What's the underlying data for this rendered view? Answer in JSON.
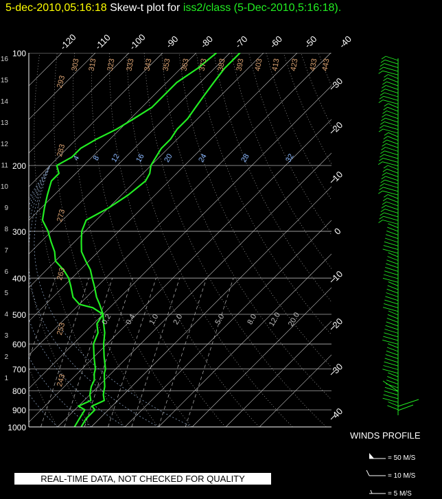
{
  "header": {
    "datetime": "5-dec-2010,05:16:18",
    "plot_label": "Skew-t plot for",
    "source": "iss2/class (5-Dec-2010,5:16:18)."
  },
  "footer": {
    "quality_note": "REAL-TIME DATA, NOT CHECKED FOR QUALITY"
  },
  "winds": {
    "title": "WINDS PROFILE",
    "legend": [
      {
        "label": "= 50 M/S"
      },
      {
        "label": "= 10 M/S"
      },
      {
        "label": "= 5 M/S"
      }
    ]
  },
  "colors": {
    "background": "#000000",
    "profile": "#22ee22",
    "grid": "#ffffff",
    "dry_adiabat_labels": "#d8a070",
    "mixing_ratio_labels": "#8ab8ff",
    "title_datetime": "#ffff00"
  },
  "chart_data": {
    "type": "line",
    "title": "Skew-t plot for iss2/class (5-Dec-2010,5:16:18).",
    "ylabel_left_km": [
      "16",
      "15",
      "14",
      "13",
      "12",
      "11",
      "10",
      "9",
      "8",
      "7",
      "6",
      "5",
      "4",
      "3",
      "2",
      "1"
    ],
    "pressure_levels": [
      100,
      200,
      300,
      400,
      500,
      600,
      700,
      800,
      900,
      1000
    ],
    "pressure_labels": [
      "100",
      "200",
      "300",
      "400",
      "500",
      "600",
      "700",
      "800",
      "900",
      "1000"
    ],
    "top_temperature_labels": [
      "-120",
      "-110",
      "-100",
      "-90",
      "-80",
      "-70",
      "-60",
      "-50",
      "-40"
    ],
    "right_temperature_labels": [
      "30",
      "20",
      "10",
      "0",
      "10",
      "20",
      "30",
      "40"
    ],
    "dry_adiabat_labels": [
      "303",
      "313",
      "323",
      "333",
      "343",
      "353",
      "363",
      "373",
      "383",
      "393",
      "403",
      "413",
      "423",
      "433",
      "443",
      "293",
      "283",
      "273",
      "263",
      "253",
      "243"
    ],
    "mixing_ratio_labels_200hPa": [
      "4",
      "8",
      "12",
      "16",
      "20",
      "24",
      "28",
      "32"
    ],
    "mixing_ratio_labels_500hPa": [
      "0.2",
      "0.4",
      "1.0",
      "2.0",
      "5.0",
      "8.0",
      "12.0",
      "20.0"
    ],
    "series": [
      {
        "points": [
          [
            1000,
            -3
          ],
          [
            950,
            -4
          ],
          [
            900,
            -4
          ],
          [
            880,
            -6
          ],
          [
            850,
            -4
          ],
          [
            820,
            -6
          ],
          [
            800,
            -7
          ],
          [
            780,
            -8
          ],
          [
            750,
            -10
          ],
          [
            720,
            -12
          ],
          [
            700,
            -13
          ],
          [
            650,
            -17
          ],
          [
            600,
            -21
          ],
          [
            560,
            -24
          ],
          [
            530,
            -27
          ],
          [
            500,
            -30
          ],
          [
            470,
            -34
          ],
          [
            450,
            -37
          ],
          [
            420,
            -41
          ],
          [
            400,
            -44
          ],
          [
            380,
            -47
          ],
          [
            360,
            -51
          ],
          [
            340,
            -55
          ],
          [
            320,
            -58
          ],
          [
            300,
            -61
          ],
          [
            280,
            -63
          ],
          [
            260,
            -60
          ],
          [
            240,
            -58
          ],
          [
            220,
            -57
          ],
          [
            210,
            -58
          ],
          [
            200,
            -60
          ],
          [
            190,
            -61
          ],
          [
            180,
            -62
          ],
          [
            170,
            -62
          ],
          [
            160,
            -63
          ],
          [
            150,
            -63
          ],
          [
            140,
            -64
          ],
          [
            130,
            -65
          ],
          [
            120,
            -66
          ],
          [
            110,
            -67
          ],
          [
            100,
            -67
          ]
        ]
      },
      {
        "points": [
          [
            1000,
            -5
          ],
          [
            950,
            -6
          ],
          [
            900,
            -7
          ],
          [
            880,
            -10
          ],
          [
            850,
            -8
          ],
          [
            820,
            -10
          ],
          [
            800,
            -11
          ],
          [
            780,
            -12
          ],
          [
            750,
            -13
          ],
          [
            720,
            -15
          ],
          [
            700,
            -16
          ],
          [
            650,
            -20
          ],
          [
            600,
            -24
          ],
          [
            560,
            -26
          ],
          [
            530,
            -29
          ],
          [
            500,
            -30
          ],
          [
            480,
            -35
          ],
          [
            470,
            -40
          ],
          [
            450,
            -44
          ],
          [
            420,
            -48
          ],
          [
            400,
            -51
          ],
          [
            380,
            -55
          ],
          [
            360,
            -60
          ],
          [
            340,
            -63
          ],
          [
            320,
            -67
          ],
          [
            305,
            -70
          ],
          [
            300,
            -71
          ],
          [
            280,
            -76
          ],
          [
            260,
            -79
          ],
          [
            240,
            -82
          ],
          [
            220,
            -85
          ],
          [
            210,
            -85
          ],
          [
            200,
            -88
          ],
          [
            190,
            -86
          ],
          [
            180,
            -86
          ],
          [
            170,
            -84
          ],
          [
            160,
            -81
          ],
          [
            150,
            -79
          ],
          [
            140,
            -77
          ],
          [
            130,
            -77
          ],
          [
            120,
            -77
          ],
          [
            110,
            -75
          ],
          [
            100,
            -74
          ]
        ]
      }
    ],
    "grid": true
  }
}
